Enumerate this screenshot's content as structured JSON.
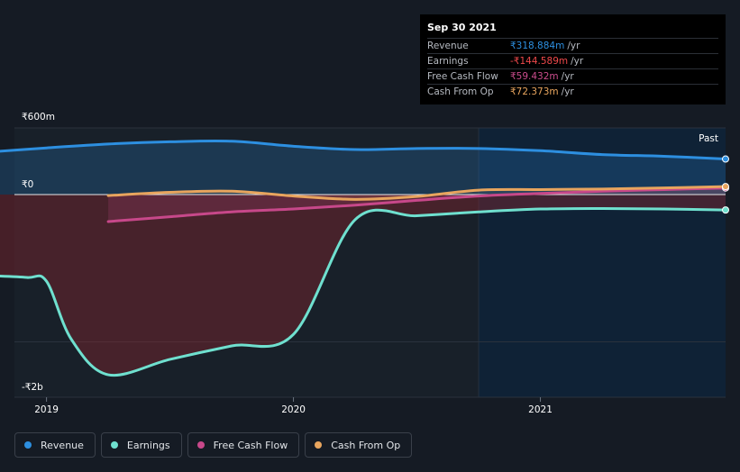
{
  "tooltip": {
    "date": "Sep 30 2021",
    "rows": [
      {
        "label": "Revenue",
        "value": "₹318.884m",
        "unit": "/yr",
        "color": "#2d8fe0"
      },
      {
        "label": "Earnings",
        "value": "-₹144.589m",
        "unit": "/yr",
        "color": "#f0494b"
      },
      {
        "label": "Free Cash Flow",
        "value": "₹59.432m",
        "unit": "/yr",
        "color": "#ca4c8c"
      },
      {
        "label": "Cash From Op",
        "value": "₹72.373m",
        "unit": "/yr",
        "color": "#e8a55e"
      }
    ]
  },
  "past_label": "Past",
  "legend": [
    {
      "label": "Revenue",
      "color": "#2d8fe0"
    },
    {
      "label": "Earnings",
      "color": "#6fe0cf"
    },
    {
      "label": "Free Cash Flow",
      "color": "#c7488a"
    },
    {
      "label": "Cash From Op",
      "color": "#e8a55e"
    }
  ],
  "chart_data": {
    "type": "area",
    "title": "",
    "xlabel": "",
    "ylabel": "",
    "y_tick_labels": [
      "₹600m",
      "₹0",
      "-₹2b"
    ],
    "x_tick_labels": [
      "2019",
      "2020",
      "2021"
    ],
    "x_ticks": [
      2019.0,
      2020.0,
      2021.0
    ],
    "xlim": [
      2018.87,
      2021.75
    ],
    "ylim": [
      -2000,
      600
    ],
    "grid": "horizontal",
    "legend_position": "bottom-left",
    "past_region_start": 2020.75,
    "series": [
      {
        "name": "Revenue",
        "color": "#2d8fe0",
        "x": [
          2018.75,
          2019.0,
          2019.25,
          2019.5,
          2019.75,
          2020.0,
          2020.25,
          2020.5,
          2020.75,
          2021.0,
          2021.25,
          2021.5,
          2021.75
        ],
        "values": [
          380,
          420,
          455,
          475,
          480,
          435,
          405,
          415,
          415,
          395,
          360,
          345,
          320
        ]
      },
      {
        "name": "Earnings",
        "color": "#6fe0cf",
        "x": [
          2018.75,
          2018.92,
          2019.0,
          2019.1,
          2019.25,
          2019.5,
          2019.75,
          2020.0,
          2020.25,
          2020.5,
          2020.75,
          2021.0,
          2021.25,
          2021.5,
          2021.75
        ],
        "values": [
          -840,
          -860,
          -900,
          -1500,
          -1870,
          -1710,
          -1570,
          -1450,
          -260,
          -220,
          -180,
          -150,
          -145,
          -150,
          -160
        ]
      },
      {
        "name": "Free Cash Flow",
        "color": "#c7488a",
        "x": [
          2019.25,
          2019.5,
          2019.75,
          2020.0,
          2020.25,
          2020.5,
          2020.75,
          2021.0,
          2021.25,
          2021.5,
          2021.75
        ],
        "values": [
          -280,
          -230,
          -180,
          -150,
          -110,
          -60,
          -15,
          10,
          30,
          45,
          59
        ]
      },
      {
        "name": "Cash From Op",
        "color": "#e8a55e",
        "x": [
          2019.25,
          2019.5,
          2019.75,
          2020.0,
          2020.25,
          2020.5,
          2020.75,
          2021.0,
          2021.25,
          2021.5,
          2021.75
        ],
        "values": [
          -10,
          20,
          30,
          -15,
          -50,
          -20,
          40,
          45,
          50,
          60,
          72
        ]
      }
    ]
  }
}
